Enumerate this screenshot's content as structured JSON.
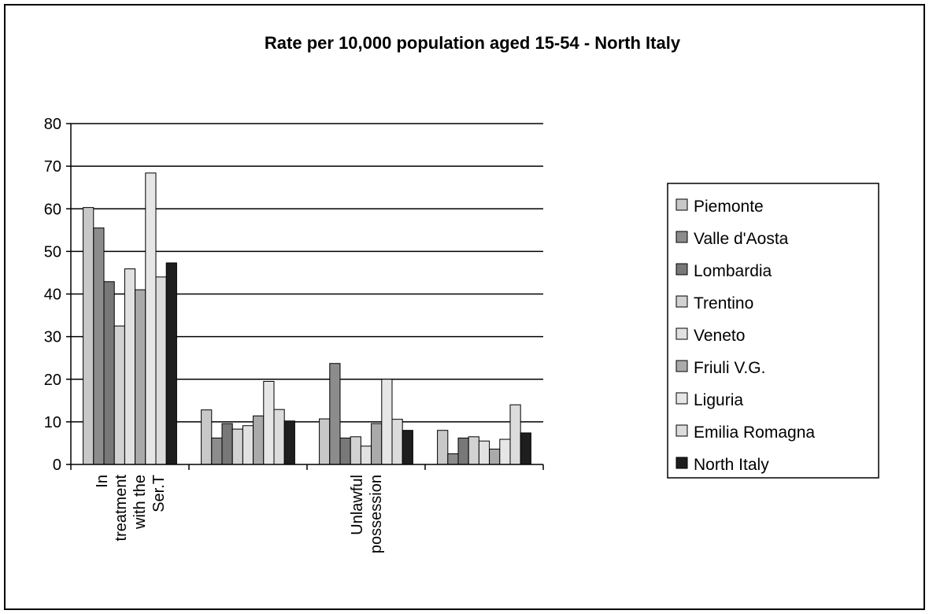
{
  "chart_data": {
    "type": "bar",
    "title": "Rate per 10,000 population aged 15-54 - North Italy",
    "xlabel": "",
    "ylabel": "",
    "ylim": [
      0,
      80
    ],
    "yticks": [
      0,
      10,
      20,
      30,
      40,
      50,
      60,
      70,
      80
    ],
    "grid": true,
    "legend_position": "right",
    "categories": [
      [
        "In",
        "treatment",
        "with the",
        "Ser.T"
      ],
      [],
      [
        "Unlawful",
        "possession"
      ],
      []
    ],
    "series": [
      {
        "name": "Piemonte",
        "color": "#c8c8c8",
        "values": [
          60.3,
          12.8,
          10.7,
          8.0
        ]
      },
      {
        "name": "Valle d'Aosta",
        "color": "#8c8c8c",
        "values": [
          55.5,
          6.2,
          23.7,
          2.5
        ]
      },
      {
        "name": "Lombardia",
        "color": "#787878",
        "values": [
          42.9,
          9.6,
          6.2,
          6.2
        ]
      },
      {
        "name": "Trentino",
        "color": "#d2d2d2",
        "values": [
          32.5,
          8.3,
          6.5,
          6.5
        ]
      },
      {
        "name": "Veneto",
        "color": "#e1e1e1",
        "values": [
          45.9,
          9.1,
          4.3,
          5.5
        ]
      },
      {
        "name": "Friuli V.G.",
        "color": "#aaaaaa",
        "values": [
          41.0,
          11.4,
          9.6,
          3.6
        ]
      },
      {
        "name": "Liguria",
        "color": "#e6e6e6",
        "values": [
          68.4,
          19.5,
          20.0,
          5.9
        ]
      },
      {
        "name": "Emilia Romagna",
        "color": "#dcdcdc",
        "values": [
          44.0,
          12.9,
          10.6,
          14.0
        ]
      },
      {
        "name": "North Italy",
        "color": "#1e1e1e",
        "values": [
          47.3,
          10.2,
          8.0,
          7.4
        ]
      }
    ]
  }
}
